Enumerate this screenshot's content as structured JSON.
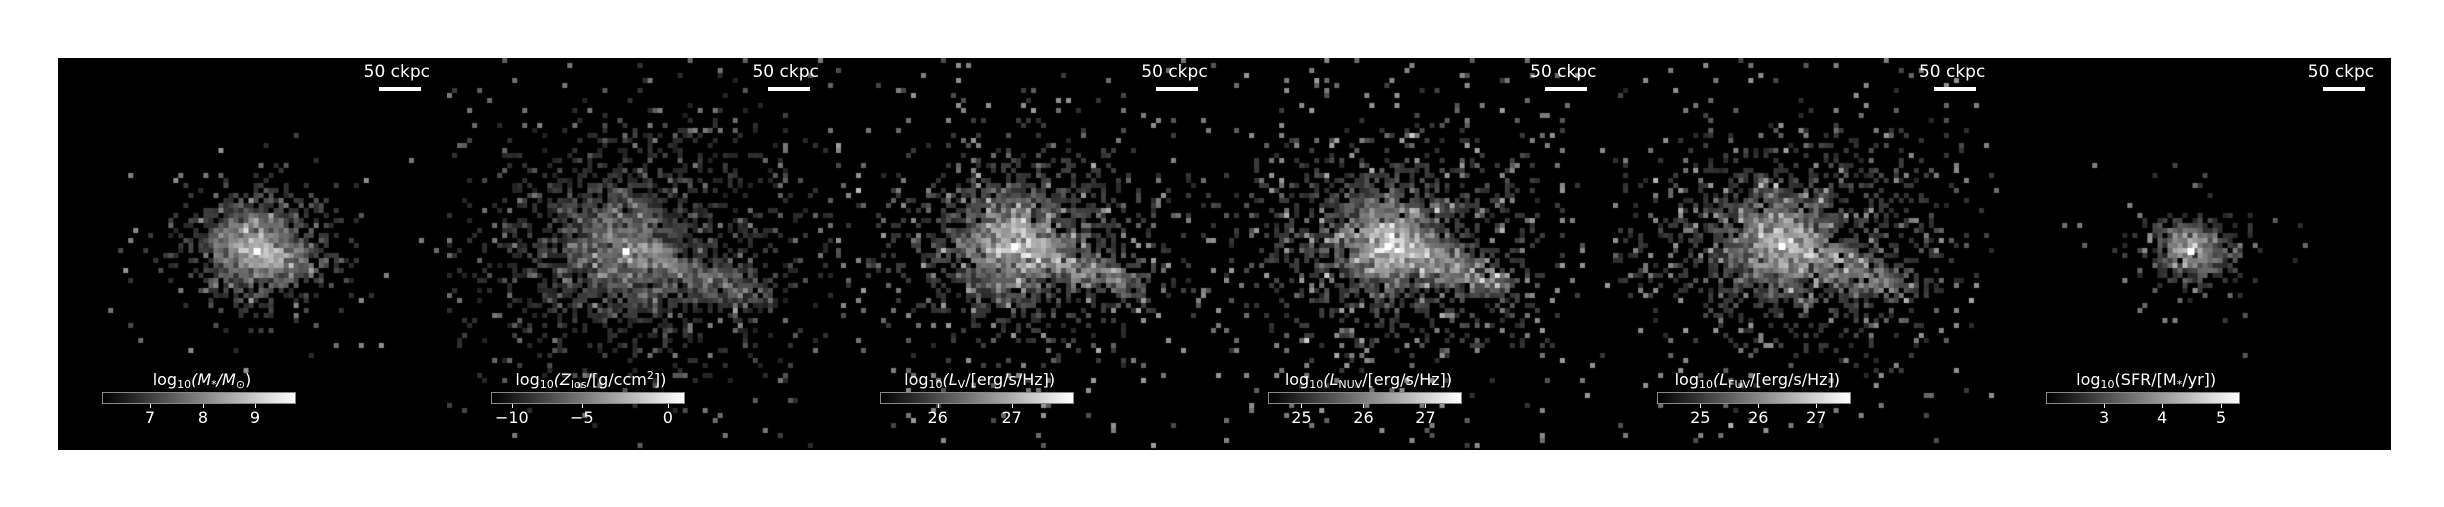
{
  "panels": [
    {
      "scale_label": "50 ckpc",
      "cb_pre": "log",
      "cb_sub": "10",
      "cb_mid": "(M",
      "cb_mid_sub": "*",
      "cb_mid2": "/M",
      "cb_mid2_sub": "⊙",
      "cb_end": ")",
      "ticks": [
        "7",
        "8",
        "9"
      ],
      "tick_frac": [
        0.25,
        0.52,
        0.79
      ]
    },
    {
      "scale_label": "50 ckpc",
      "cb_pre": "log",
      "cb_sub": "10",
      "cb_mid": "(Z",
      "cb_mid_sub": "los",
      "cb_mid2": "/[g/ccm",
      "cb_mid2_sup": "2",
      "cb_end": "])",
      "ticks": [
        "−10",
        "−5",
        "0"
      ],
      "tick_frac": [
        0.11,
        0.47,
        0.91
      ]
    },
    {
      "scale_label": "50 ckpc",
      "cb_pre": "log",
      "cb_sub": "10",
      "cb_mid": "(L",
      "cb_mid_sub": "V",
      "cb_mid2": "/[erg/s/Hz])",
      "cb_end": "",
      "ticks": [
        "26",
        "27"
      ],
      "tick_frac": [
        0.3,
        0.68
      ]
    },
    {
      "scale_label": "50 ckpc",
      "cb_pre": "log",
      "cb_sub": "10",
      "cb_mid": "(L",
      "cb_mid_sub": "NUV",
      "cb_mid2": "/[erg/s/Hz])",
      "cb_end": "",
      "ticks": [
        "25",
        "26",
        "27"
      ],
      "tick_frac": [
        0.17,
        0.49,
        0.81
      ]
    },
    {
      "scale_label": "50 ckpc",
      "cb_pre": "log",
      "cb_sub": "10",
      "cb_mid": "(L",
      "cb_mid_sub": "FUV",
      "cb_mid2": "/[erg/s/Hz])",
      "cb_end": "",
      "ticks": [
        "25",
        "26",
        "27"
      ],
      "tick_frac": [
        0.22,
        0.52,
        0.82
      ]
    },
    {
      "scale_label": "50 ckpc",
      "cb_pre": "log",
      "cb_sub": "10",
      "cb_mid": "(SFR/[M",
      "cb_mid_sub": "*",
      "cb_mid2": "/yr])",
      "cb_end": "",
      "ticks": [
        "3",
        "4",
        "5"
      ],
      "tick_frac": [
        0.3,
        0.6,
        0.9
      ]
    }
  ]
}
